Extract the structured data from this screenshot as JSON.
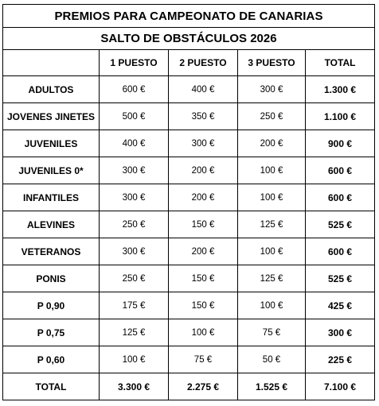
{
  "title": "PREMIOS PARA CAMPEONATO DE CANARIAS",
  "subtitle": "SALTO DE OBSTÁCULOS 2026",
  "columns": [
    "",
    "1 PUESTO",
    "2 PUESTO",
    "3 PUESTO",
    "TOTAL"
  ],
  "rows": [
    {
      "category": "ADULTOS",
      "first": "600 €",
      "second": "400 €",
      "third": "300 €",
      "total": "1.300 €"
    },
    {
      "category": "JOVENES JINETES",
      "first": "500 €",
      "second": "350 €",
      "third": "250 €",
      "total": "1.100 €"
    },
    {
      "category": "JUVENILES",
      "first": "400 €",
      "second": "300 €",
      "third": "200 €",
      "total": "900 €"
    },
    {
      "category": "JUVENILES 0*",
      "first": "300 €",
      "second": "200 €",
      "third": "100 €",
      "total": "600 €"
    },
    {
      "category": "INFANTILES",
      "first": "300 €",
      "second": "200 €",
      "third": "100 €",
      "total": "600 €"
    },
    {
      "category": "ALEVINES",
      "first": "250 €",
      "second": "150 €",
      "third": "125 €",
      "total": "525 €"
    },
    {
      "category": "VETERANOS",
      "first": "300 €",
      "second": "200 €",
      "third": "100 €",
      "total": "600 €"
    },
    {
      "category": "PONIS",
      "first": "250 €",
      "second": "150 €",
      "third": "125 €",
      "total": "525 €"
    },
    {
      "category": "P 0,90",
      "first": "175 €",
      "second": "150 €",
      "third": "100 €",
      "total": "425 €"
    },
    {
      "category": "P 0,75",
      "first": "125 €",
      "second": "100 €",
      "third": "75 €",
      "total": "300 €"
    },
    {
      "category": "P 0,60",
      "first": "100 €",
      "second": "75 €",
      "third": "50 €",
      "total": "225 €"
    }
  ],
  "totals": {
    "label": "TOTAL",
    "first": "3.300 €",
    "second": "2.275 €",
    "third": "1.525 €",
    "total": "7.100 €"
  }
}
